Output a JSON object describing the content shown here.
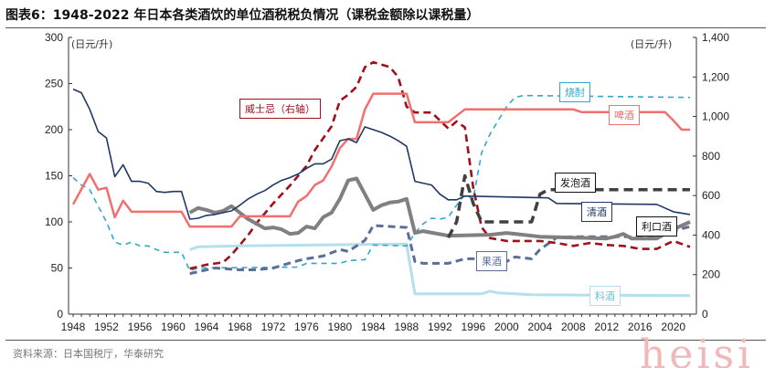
{
  "title": "图表6：1948-2022 年日本各类酒饮的单位酒税税负情况（课税金额除以课税量）",
  "source": "资料来源：日本国税厅，华泰研究",
  "watermark": "heisi",
  "chart_data": {
    "type": "line",
    "title": "1948-2022 年日本各类酒饮的单位酒税税负情况（课税金额除以课税量）",
    "ylabel_left": "(日元/升)",
    "ylabel_right": "(日元/升)",
    "ylim_left": [
      0,
      300
    ],
    "ylim_right": [
      0,
      1400
    ],
    "yticks_left": [
      "0",
      "50",
      "100",
      "150",
      "200",
      "250",
      "300"
    ],
    "yticks_right": [
      "0",
      "200",
      "400",
      "600",
      "800",
      "1,000",
      "1,200",
      "1,400"
    ],
    "xlim": [
      1948,
      2022
    ],
    "xticks": [
      "1948",
      "1952",
      "1956",
      "1960",
      "1964",
      "1968",
      "1972",
      "1976",
      "1980",
      "1984",
      "1988",
      "1992",
      "1996",
      "2000",
      "2004",
      "2008",
      "2012",
      "2016",
      "2020"
    ],
    "grid": false,
    "series": [
      {
        "name": "啤酒",
        "axis": "left",
        "color": "#f07070",
        "style": "solid",
        "width": 2.5,
        "points": [
          [
            1948,
            119
          ],
          [
            1950,
            152
          ],
          [
            1951,
            135
          ],
          [
            1952,
            137
          ],
          [
            1953,
            105
          ],
          [
            1954,
            123
          ],
          [
            1955,
            111
          ],
          [
            1961,
            111
          ],
          [
            1962,
            95
          ],
          [
            1967,
            95
          ],
          [
            1968,
            106
          ],
          [
            1974,
            106
          ],
          [
            1975,
            122
          ],
          [
            1976,
            128
          ],
          [
            1977,
            140
          ],
          [
            1978,
            145
          ],
          [
            1979,
            160
          ],
          [
            1980,
            180
          ],
          [
            1981,
            190
          ],
          [
            1982,
            190
          ],
          [
            1983,
            222
          ],
          [
            1984,
            239
          ],
          [
            1988,
            239
          ],
          [
            1989,
            208
          ],
          [
            1993,
            208
          ],
          [
            1994,
            215
          ],
          [
            1995,
            222
          ],
          [
            2008,
            222
          ],
          [
            2009,
            219
          ],
          [
            2019,
            219
          ],
          [
            2020,
            210
          ],
          [
            2021,
            200
          ],
          [
            2022,
            200
          ]
        ]
      },
      {
        "name": "清酒",
        "axis": "left",
        "color": "#1f3864",
        "style": "solid",
        "width": 1.6,
        "points": [
          [
            1948,
            244
          ],
          [
            1949,
            240
          ],
          [
            1950,
            222
          ],
          [
            1951,
            198
          ],
          [
            1952,
            191
          ],
          [
            1953,
            149
          ],
          [
            1954,
            162
          ],
          [
            1955,
            144
          ],
          [
            1956,
            144
          ],
          [
            1957,
            142
          ],
          [
            1958,
            133
          ],
          [
            1959,
            132
          ],
          [
            1960,
            133
          ],
          [
            1961,
            133
          ],
          [
            1962,
            103
          ],
          [
            1963,
            104
          ],
          [
            1964,
            107
          ],
          [
            1965,
            108
          ],
          [
            1966,
            110
          ],
          [
            1967,
            112
          ],
          [
            1968,
            118
          ],
          [
            1969,
            125
          ],
          [
            1970,
            130
          ],
          [
            1971,
            134
          ],
          [
            1972,
            140
          ],
          [
            1973,
            145
          ],
          [
            1974,
            148
          ],
          [
            1975,
            152
          ],
          [
            1976,
            158
          ],
          [
            1977,
            163
          ],
          [
            1978,
            163
          ],
          [
            1979,
            168
          ],
          [
            1980,
            188
          ],
          [
            1981,
            190
          ],
          [
            1982,
            186
          ],
          [
            1983,
            203
          ],
          [
            1984,
            200
          ],
          [
            1985,
            197
          ],
          [
            1986,
            193
          ],
          [
            1987,
            188
          ],
          [
            1988,
            182
          ],
          [
            1989,
            144
          ],
          [
            1990,
            142
          ],
          [
            1991,
            140
          ],
          [
            1992,
            130
          ],
          [
            1993,
            124
          ],
          [
            1994,
            124
          ],
          [
            1995,
            128
          ],
          [
            2005,
            126
          ],
          [
            2006,
            120
          ],
          [
            2018,
            119
          ],
          [
            2019,
            115
          ],
          [
            2020,
            111
          ],
          [
            2022,
            108
          ]
        ]
      },
      {
        "name": "烧酎",
        "axis": "left",
        "color": "#2ea8cc",
        "style": "dash-thin",
        "width": 1.6,
        "points": [
          [
            1948,
            148
          ],
          [
            1949,
            140
          ],
          [
            1950,
            135
          ],
          [
            1951,
            117
          ],
          [
            1952,
            100
          ],
          [
            1953,
            78
          ],
          [
            1954,
            75
          ],
          [
            1955,
            78
          ],
          [
            1956,
            74
          ],
          [
            1957,
            74
          ],
          [
            1958,
            70
          ],
          [
            1959,
            67
          ],
          [
            1961,
            67
          ],
          [
            1962,
            47
          ],
          [
            1963,
            50
          ],
          [
            1975,
            51
          ],
          [
            1976,
            55
          ],
          [
            1980,
            55
          ],
          [
            1981,
            58
          ],
          [
            1983,
            59
          ],
          [
            1984,
            75
          ],
          [
            1988,
            74
          ],
          [
            1989,
            88
          ],
          [
            1990,
            98
          ],
          [
            1991,
            104
          ],
          [
            1992,
            103
          ],
          [
            1993,
            105
          ],
          [
            1994,
            118
          ],
          [
            1995,
            130
          ],
          [
            1996,
            125
          ],
          [
            1997,
            175
          ],
          [
            1998,
            195
          ],
          [
            1999,
            210
          ],
          [
            2000,
            225
          ],
          [
            2001,
            235
          ],
          [
            2002,
            237
          ],
          [
            2022,
            235
          ]
        ]
      },
      {
        "name": "料酒",
        "axis": "left",
        "color": "#b4e0ec",
        "style": "solid",
        "width": 3,
        "points": [
          [
            1962,
            70
          ],
          [
            1963,
            73
          ],
          [
            1968,
            74
          ],
          [
            1988,
            76
          ],
          [
            1989,
            22
          ],
          [
            1997,
            22
          ],
          [
            1998,
            25
          ],
          [
            1999,
            23
          ],
          [
            2003,
            21
          ],
          [
            2022,
            20
          ]
        ]
      },
      {
        "name": "威士忌（右轴）",
        "axis": "right",
        "color": "#a00f1a",
        "style": "dash",
        "width": 2.6,
        "points": [
          [
            1962,
            230
          ],
          [
            1964,
            250
          ],
          [
            1966,
            262
          ],
          [
            1967,
            300
          ],
          [
            1969,
            400
          ],
          [
            1970,
            460
          ],
          [
            1972,
            560
          ],
          [
            1974,
            650
          ],
          [
            1976,
            750
          ],
          [
            1977,
            830
          ],
          [
            1979,
            950
          ],
          [
            1980,
            1080
          ],
          [
            1981,
            1110
          ],
          [
            1982,
            1150
          ],
          [
            1983,
            1250
          ],
          [
            1984,
            1275
          ],
          [
            1986,
            1250
          ],
          [
            1987,
            1200
          ],
          [
            1988,
            1050
          ],
          [
            1989,
            1020
          ],
          [
            1991,
            1020
          ],
          [
            1993,
            940
          ],
          [
            1994,
            975
          ],
          [
            1995,
            945
          ],
          [
            1996,
            640
          ],
          [
            1997,
            440
          ],
          [
            1998,
            385
          ],
          [
            2000,
            370
          ],
          [
            2004,
            370
          ],
          [
            2006,
            360
          ],
          [
            2008,
            345
          ],
          [
            2010,
            360
          ],
          [
            2012,
            350
          ],
          [
            2014,
            345
          ],
          [
            2016,
            330
          ],
          [
            2018,
            330
          ],
          [
            2020,
            370
          ],
          [
            2022,
            340
          ]
        ]
      },
      {
        "name": "发泡酒",
        "axis": "left",
        "color": "#404040",
        "style": "dash-thick",
        "width": 3.5,
        "points": [
          [
            1993,
            83
          ],
          [
            1994,
            100
          ],
          [
            1995,
            150
          ],
          [
            1996,
            120
          ],
          [
            1997,
            100
          ],
          [
            2003,
            100
          ],
          [
            2004,
            130
          ],
          [
            2005,
            135
          ],
          [
            2022,
            135
          ]
        ]
      },
      {
        "name": "利口酒",
        "axis": "left",
        "color": "#808080",
        "style": "solid",
        "width": 4,
        "points": [
          [
            1962,
            110
          ],
          [
            1963,
            115
          ],
          [
            1964,
            113
          ],
          [
            1965,
            110
          ],
          [
            1966,
            112
          ],
          [
            1967,
            117
          ],
          [
            1968,
            110
          ],
          [
            1969,
            103
          ],
          [
            1970,
            98
          ],
          [
            1971,
            93
          ],
          [
            1972,
            94
          ],
          [
            1973,
            92
          ],
          [
            1974,
            87
          ],
          [
            1975,
            88
          ],
          [
            1976,
            95
          ],
          [
            1977,
            93
          ],
          [
            1978,
            105
          ],
          [
            1979,
            110
          ],
          [
            1980,
            125
          ],
          [
            1981,
            145
          ],
          [
            1982,
            147
          ],
          [
            1983,
            130
          ],
          [
            1984,
            113
          ],
          [
            1985,
            118
          ],
          [
            1986,
            121
          ],
          [
            1987,
            122
          ],
          [
            1988,
            125
          ],
          [
            1989,
            88
          ],
          [
            1990,
            90
          ],
          [
            1993,
            85
          ],
          [
            1998,
            86
          ],
          [
            2000,
            88
          ],
          [
            2002,
            86
          ],
          [
            2004,
            84
          ],
          [
            2008,
            83
          ],
          [
            2012,
            82
          ],
          [
            2013,
            84
          ],
          [
            2014,
            87
          ],
          [
            2015,
            82
          ],
          [
            2018,
            82
          ],
          [
            2020,
            92
          ],
          [
            2022,
            100
          ]
        ]
      },
      {
        "name": "果酒",
        "axis": "left",
        "color": "#5a6e99",
        "style": "dash",
        "width": 3,
        "points": [
          [
            1962,
            44
          ],
          [
            1965,
            50
          ],
          [
            1968,
            48
          ],
          [
            1970,
            48
          ],
          [
            1972,
            50
          ],
          [
            1975,
            58
          ],
          [
            1976,
            60
          ],
          [
            1978,
            63
          ],
          [
            1980,
            70
          ],
          [
            1981,
            68
          ],
          [
            1983,
            80
          ],
          [
            1984,
            96
          ],
          [
            1988,
            94
          ],
          [
            1989,
            57
          ],
          [
            1990,
            55
          ],
          [
            1993,
            55
          ],
          [
            1995,
            60
          ],
          [
            1999,
            60
          ],
          [
            2000,
            57
          ],
          [
            2001,
            62
          ],
          [
            2003,
            60
          ],
          [
            2004,
            70
          ],
          [
            2006,
            83
          ],
          [
            2008,
            84
          ],
          [
            2018,
            84
          ],
          [
            2020,
            90
          ],
          [
            2022,
            95
          ]
        ]
      }
    ]
  }
}
